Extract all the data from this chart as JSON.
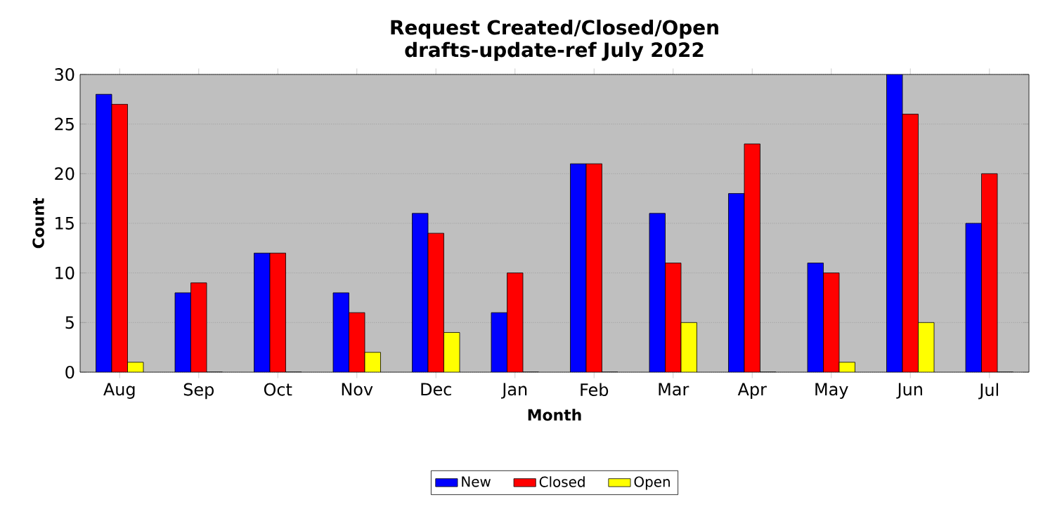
{
  "chart_data": {
    "type": "bar",
    "title": "Request Created/Closed/Open drafts-update-ref July 2022",
    "xlabel": "Month",
    "ylabel": "Count",
    "categories": [
      "Aug",
      "Sep",
      "Oct",
      "Nov",
      "Dec",
      "Jan",
      "Feb",
      "Mar",
      "Apr",
      "May",
      "Jun",
      "Jul"
    ],
    "series": [
      {
        "name": "New",
        "color": "#0000ff",
        "values": [
          28,
          8,
          12,
          8,
          16,
          6,
          21,
          16,
          18,
          11,
          30,
          15
        ]
      },
      {
        "name": "Closed",
        "color": "#ff0000",
        "values": [
          27,
          9,
          12,
          6,
          14,
          10,
          21,
          11,
          23,
          10,
          26,
          20
        ]
      },
      {
        "name": "Open",
        "color": "#ffff00",
        "values": [
          1,
          0,
          0,
          2,
          4,
          0,
          0,
          5,
          0,
          1,
          5,
          0
        ]
      }
    ],
    "ylim": [
      0,
      30
    ],
    "yticks": [
      0,
      5,
      10,
      15,
      20,
      25,
      30
    ],
    "grid": "y",
    "legend": "bottom"
  }
}
